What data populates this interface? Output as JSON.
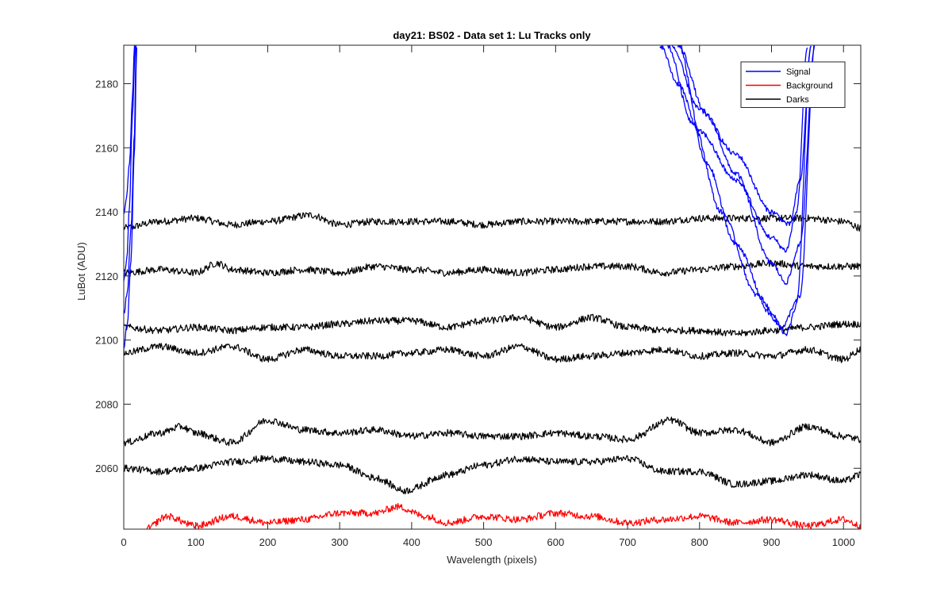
{
  "chart_data": {
    "type": "line",
    "title": "day21: BS02 - Data set 1: Lu Tracks only",
    "xlabel": "Wavelength (pixels)",
    "ylabel": "LuBot (ADU)",
    "xlim": [
      0,
      1024
    ],
    "ylim": [
      2041,
      2192
    ],
    "xticks": [
      0,
      100,
      200,
      300,
      400,
      500,
      600,
      700,
      800,
      900,
      1000
    ],
    "yticks": [
      2060,
      2080,
      2100,
      2120,
      2140,
      2160,
      2180
    ],
    "grid": false,
    "legend_position": "top-right",
    "legend": [
      {
        "label": "Signal",
        "color": "#0000ff"
      },
      {
        "label": "Background",
        "color": "#ff0000"
      },
      {
        "label": "Darks",
        "color": "#000000"
      }
    ],
    "series": [
      {
        "group": "Darks",
        "color": "#000000",
        "x": [
          0,
          50,
          100,
          150,
          200,
          260,
          300,
          350,
          400,
          450,
          500,
          550,
          600,
          650,
          700,
          750,
          800,
          850,
          900,
          950,
          1000,
          1024
        ],
        "y": [
          2135,
          2137,
          2138,
          2136,
          2137,
          2139,
          2136,
          2137,
          2137,
          2137,
          2136,
          2137,
          2137,
          2137,
          2137,
          2137,
          2138,
          2138,
          2138,
          2138,
          2137,
          2135
        ]
      },
      {
        "group": "Darks",
        "color": "#000000",
        "x": [
          0,
          50,
          100,
          130,
          150,
          200,
          250,
          300,
          350,
          400,
          450,
          500,
          550,
          600,
          650,
          700,
          750,
          800,
          850,
          900,
          950,
          1000,
          1024
        ],
        "y": [
          2121,
          2122,
          2121,
          2124,
          2122,
          2121,
          2122,
          2121,
          2123,
          2122,
          2121,
          2122,
          2121,
          2122,
          2123,
          2123,
          2121,
          2122,
          2123,
          2124,
          2123,
          2123,
          2123
        ]
      },
      {
        "group": "Darks",
        "color": "#000000",
        "x": [
          0,
          50,
          100,
          150,
          200,
          250,
          300,
          350,
          400,
          450,
          500,
          550,
          600,
          650,
          700,
          750,
          800,
          850,
          900,
          950,
          1000,
          1024
        ],
        "y": [
          2104,
          2103,
          2104,
          2103,
          2104,
          2104,
          2105,
          2106,
          2106,
          2104,
          2106,
          2107,
          2104,
          2107,
          2104,
          2103,
          2103,
          2102,
          2103,
          2104,
          2105,
          2105
        ]
      },
      {
        "group": "Darks",
        "color": "#000000",
        "x": [
          0,
          50,
          100,
          150,
          200,
          250,
          300,
          350,
          400,
          450,
          500,
          550,
          600,
          650,
          700,
          750,
          800,
          850,
          900,
          950,
          1000,
          1024
        ],
        "y": [
          2096,
          2098,
          2096,
          2098,
          2094,
          2097,
          2095,
          2095,
          2096,
          2097,
          2095,
          2098,
          2094,
          2095,
          2096,
          2097,
          2095,
          2096,
          2095,
          2097,
          2094,
          2097
        ]
      },
      {
        "group": "Darks",
        "color": "#000000",
        "x": [
          0,
          50,
          80,
          100,
          150,
          200,
          250,
          300,
          350,
          400,
          450,
          500,
          550,
          600,
          650,
          700,
          760,
          800,
          850,
          900,
          950,
          1000,
          1024
        ],
        "y": [
          2068,
          2071,
          2073,
          2071,
          2068,
          2075,
          2072,
          2071,
          2072,
          2070,
          2071,
          2070,
          2070,
          2071,
          2070,
          2069,
          2075,
          2071,
          2072,
          2068,
          2073,
          2070,
          2069
        ]
      },
      {
        "group": "Darks",
        "color": "#000000",
        "x": [
          0,
          50,
          100,
          150,
          200,
          250,
          300,
          350,
          390,
          450,
          500,
          550,
          600,
          650,
          700,
          750,
          800,
          850,
          900,
          950,
          1000,
          1024
        ],
        "y": [
          2060,
          2059,
          2060,
          2062,
          2063,
          2062,
          2061,
          2057,
          2053,
          2058,
          2061,
          2063,
          2062,
          2062,
          2063,
          2059,
          2059,
          2055,
          2056,
          2058,
          2056,
          2058
        ]
      },
      {
        "group": "Background",
        "color": "#ff0000",
        "x": [
          30,
          60,
          100,
          150,
          200,
          250,
          300,
          350,
          380,
          420,
          450,
          500,
          550,
          600,
          650,
          700,
          750,
          800,
          850,
          900,
          950,
          1000,
          1024
        ],
        "y": [
          2041,
          2045,
          2042,
          2045,
          2043,
          2044,
          2046,
          2046,
          2048,
          2045,
          2043,
          2045,
          2044,
          2046,
          2045,
          2043,
          2044,
          2045,
          2043,
          2044,
          2042,
          2044,
          2042
        ]
      },
      {
        "group": "Signal",
        "color": "#0000ff",
        "x": [
          0,
          5,
          10,
          15,
          18
        ],
        "y": [
          2098,
          2105,
          2125,
          2160,
          2192
        ]
      },
      {
        "group": "Signal",
        "color": "#0000ff",
        "x": [
          0,
          5,
          10,
          15,
          17
        ],
        "y": [
          2108,
          2115,
          2135,
          2165,
          2192
        ]
      },
      {
        "group": "Signal",
        "color": "#0000ff",
        "x": [
          0,
          4,
          8,
          12,
          16
        ],
        "y": [
          2118,
          2125,
          2142,
          2170,
          2192
        ]
      },
      {
        "group": "Signal",
        "color": "#0000ff",
        "x": [
          0,
          4,
          8,
          12,
          15
        ],
        "y": [
          2140,
          2145,
          2155,
          2175,
          2192
        ]
      },
      {
        "group": "Signal",
        "color": "#0000ff",
        "x": [
          745,
          770,
          800,
          850,
          900,
          920,
          935,
          950
        ],
        "y": [
          2192,
          2180,
          2165,
          2150,
          2132,
          2128,
          2140,
          2192
        ]
      },
      {
        "group": "Signal",
        "color": "#0000ff",
        "x": [
          760,
          800,
          850,
          900,
          925,
          940,
          955
        ],
        "y": [
          2192,
          2172,
          2158,
          2140,
          2136,
          2150,
          2192
        ]
      },
      {
        "group": "Signal",
        "color": "#0000ff",
        "x": [
          770,
          810,
          850,
          900,
          920,
          940,
          960
        ],
        "y": [
          2192,
          2170,
          2152,
          2124,
          2118,
          2130,
          2192
        ]
      },
      {
        "group": "Signal",
        "color": "#0000ff",
        "x": [
          755,
          790,
          830,
          880,
          915,
          935,
          955
        ],
        "y": [
          2192,
          2168,
          2140,
          2114,
          2104,
          2112,
          2192
        ]
      },
      {
        "group": "Signal",
        "color": "#0000ff",
        "x": [
          770,
          810,
          850,
          900,
          920,
          940,
          960
        ],
        "y": [
          2192,
          2155,
          2130,
          2108,
          2102,
          2114,
          2192
        ]
      }
    ]
  }
}
